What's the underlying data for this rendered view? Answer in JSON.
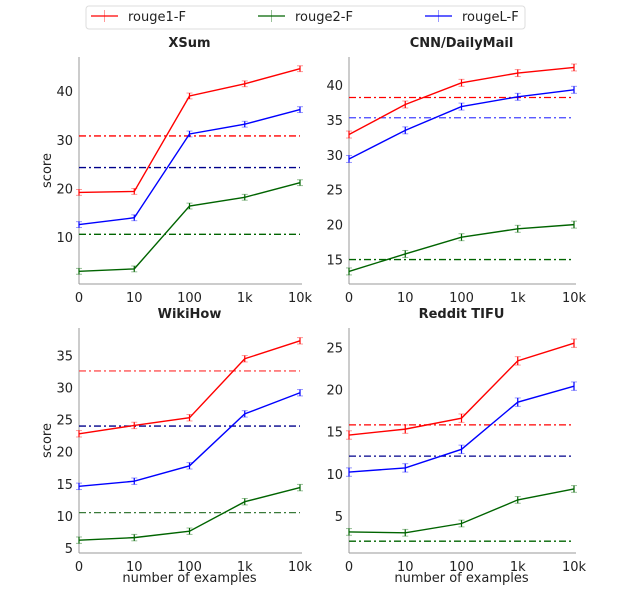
{
  "legend": {
    "placement": "top-center",
    "items": [
      {
        "name": "rouge1-F",
        "color": "#ff0000"
      },
      {
        "name": "rouge2-F",
        "color": "#006400"
      },
      {
        "name": "rougeL-F",
        "color": "#0000ff"
      }
    ]
  },
  "chart_data": [
    {
      "type": "line",
      "title": "XSum",
      "xlabel": "",
      "ylabel": "score",
      "categories": [
        "0",
        "10",
        "100",
        "1k",
        "10k"
      ],
      "ylim": [
        0.4,
        47
      ],
      "yticks": [
        10,
        20,
        30,
        40
      ],
      "grid": false,
      "series": [
        {
          "name": "rouge1-F",
          "values": [
            19.2,
            19.4,
            39.0,
            41.5,
            44.6
          ],
          "error": 0.6
        },
        {
          "name": "rouge2-F",
          "values": [
            3.0,
            3.5,
            16.4,
            18.2,
            21.2
          ],
          "error": 0.6
        },
        {
          "name": "rougeL-F",
          "values": [
            12.6,
            14.0,
            31.2,
            33.2,
            36.2
          ],
          "error": 0.6
        }
      ],
      "baselines": [
        {
          "series": "rouge1-F",
          "value": 30.8,
          "color": "#ff0000"
        },
        {
          "series": "rougeL-F",
          "value": 24.3,
          "color": "#00008b"
        },
        {
          "series": "rouge2-F",
          "value": 10.6,
          "color": "#006400"
        }
      ]
    },
    {
      "type": "line",
      "title": "CNN/DailyMail",
      "xlabel": "",
      "ylabel": "",
      "categories": [
        "0",
        "10",
        "100",
        "1k",
        "10k"
      ],
      "ylim": [
        11.5,
        44
      ],
      "yticks": [
        15,
        20,
        25,
        30,
        35,
        40
      ],
      "grid": false,
      "series": [
        {
          "name": "rouge1-F",
          "values": [
            32.9,
            37.2,
            40.3,
            41.7,
            42.5
          ],
          "error": 0.5
        },
        {
          "name": "rouge2-F",
          "values": [
            13.3,
            15.8,
            18.2,
            19.4,
            20.0
          ],
          "error": 0.5
        },
        {
          "name": "rougeL-F",
          "values": [
            29.4,
            33.5,
            36.9,
            38.3,
            39.3
          ],
          "error": 0.5
        }
      ],
      "baselines": [
        {
          "series": "rouge1-F",
          "value": 38.2,
          "color": "#ff0000"
        },
        {
          "series": "rougeL-F",
          "value": 35.3,
          "color": "#4444ff"
        },
        {
          "series": "rouge2-F",
          "value": 15.0,
          "color": "#006400"
        }
      ]
    },
    {
      "type": "line",
      "title": "WikiHow",
      "xlabel": "number of examples",
      "ylabel": "score",
      "categories": [
        "0",
        "10",
        "100",
        "1k",
        "10k"
      ],
      "ylim": [
        4.2,
        39.3
      ],
      "yticks": [
        5,
        10,
        15,
        20,
        25,
        30,
        35
      ],
      "grid": false,
      "series": [
        {
          "name": "rouge1-F",
          "values": [
            22.8,
            24.1,
            25.3,
            34.5,
            37.3
          ],
          "error": 0.5
        },
        {
          "name": "rouge2-F",
          "values": [
            6.2,
            6.6,
            7.6,
            12.2,
            14.4
          ],
          "error": 0.5
        },
        {
          "name": "rougeL-F",
          "values": [
            14.6,
            15.4,
            17.8,
            25.9,
            29.2
          ],
          "error": 0.5
        }
      ],
      "baselines": [
        {
          "series": "rouge1-F",
          "value": 32.6,
          "color": "#ff5555"
        },
        {
          "series": "rougeL-F",
          "value": 24.0,
          "color": "#00008b"
        },
        {
          "series": "rouge2-F",
          "value": 10.5,
          "color": "#3a7a3a"
        }
      ]
    },
    {
      "type": "line",
      "title": "Reddit TIFU",
      "xlabel": "number of examples",
      "ylabel": "",
      "categories": [
        "0",
        "10",
        "100",
        "1k",
        "10k"
      ],
      "ylim": [
        0.6,
        27.3
      ],
      "yticks": [
        5,
        10,
        15,
        20,
        25
      ],
      "grid": false,
      "series": [
        {
          "name": "rouge1-F",
          "values": [
            14.6,
            15.3,
            16.6,
            23.4,
            25.5
          ],
          "error": 0.5
        },
        {
          "name": "rouge2-F",
          "values": [
            3.1,
            3.0,
            4.1,
            6.9,
            8.2
          ],
          "error": 0.4
        },
        {
          "name": "rougeL-F",
          "values": [
            10.2,
            10.7,
            12.9,
            18.5,
            20.4
          ],
          "error": 0.5
        }
      ],
      "baselines": [
        {
          "series": "rouge1-F",
          "value": 15.8,
          "color": "#ff0000"
        },
        {
          "series": "rougeL-F",
          "value": 12.1,
          "color": "#00008b"
        },
        {
          "series": "rouge2-F",
          "value": 2.0,
          "color": "#006400"
        }
      ]
    }
  ]
}
